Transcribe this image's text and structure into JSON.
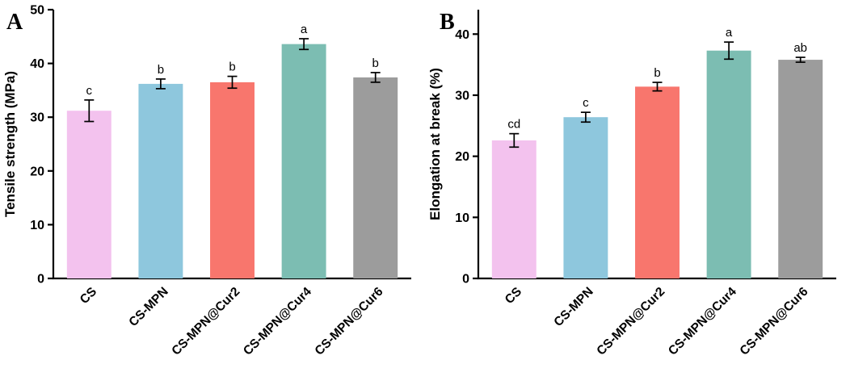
{
  "figure": {
    "background": "#ffffff",
    "description_panels": [
      "A",
      "B"
    ]
  },
  "chart_data": [
    {
      "type": "bar",
      "panel_label": "A",
      "title": "",
      "xlabel": "",
      "ylabel": "Tensile strength (MPa)",
      "categories": [
        "CS",
        "CS-MPN",
        "CS-MPN@Cur2",
        "CS-MPN@Cur4",
        "CS-MPN@Cur6"
      ],
      "values": [
        31.2,
        36.2,
        36.5,
        43.6,
        37.4
      ],
      "errors": [
        2.0,
        0.9,
        1.1,
        1.0,
        0.9
      ],
      "sig_labels": [
        "c",
        "b",
        "b",
        "a",
        "b"
      ],
      "bar_colors": [
        "#f3c2ee",
        "#8ec7dd",
        "#f8766d",
        "#7cbdb2",
        "#9c9c9c"
      ],
      "axis_color": "#000000",
      "ylim": [
        0,
        50
      ],
      "yticks": [
        0,
        10,
        20,
        30,
        40,
        50
      ],
      "grid": false,
      "legend": "none"
    },
    {
      "type": "bar",
      "panel_label": "B",
      "title": "",
      "xlabel": "",
      "ylabel": "Elongation at break (%)",
      "categories": [
        "CS",
        "CS-MPN",
        "CS-MPN@Cur2",
        "CS-MPN@Cur4",
        "CS-MPN@Cur6"
      ],
      "values": [
        22.6,
        26.4,
        31.4,
        37.3,
        35.8
      ],
      "errors": [
        1.1,
        0.8,
        0.7,
        1.4,
        0.4
      ],
      "sig_labels": [
        "cd",
        "c",
        "b",
        "a",
        "ab"
      ],
      "bar_colors": [
        "#f3c2ee",
        "#8ec7dd",
        "#f8766d",
        "#7cbdb2",
        "#9c9c9c"
      ],
      "axis_color": "#000000",
      "ylim": [
        0,
        44
      ],
      "yticks": [
        0,
        10,
        20,
        30,
        40
      ],
      "grid": false,
      "legend": "none"
    }
  ]
}
